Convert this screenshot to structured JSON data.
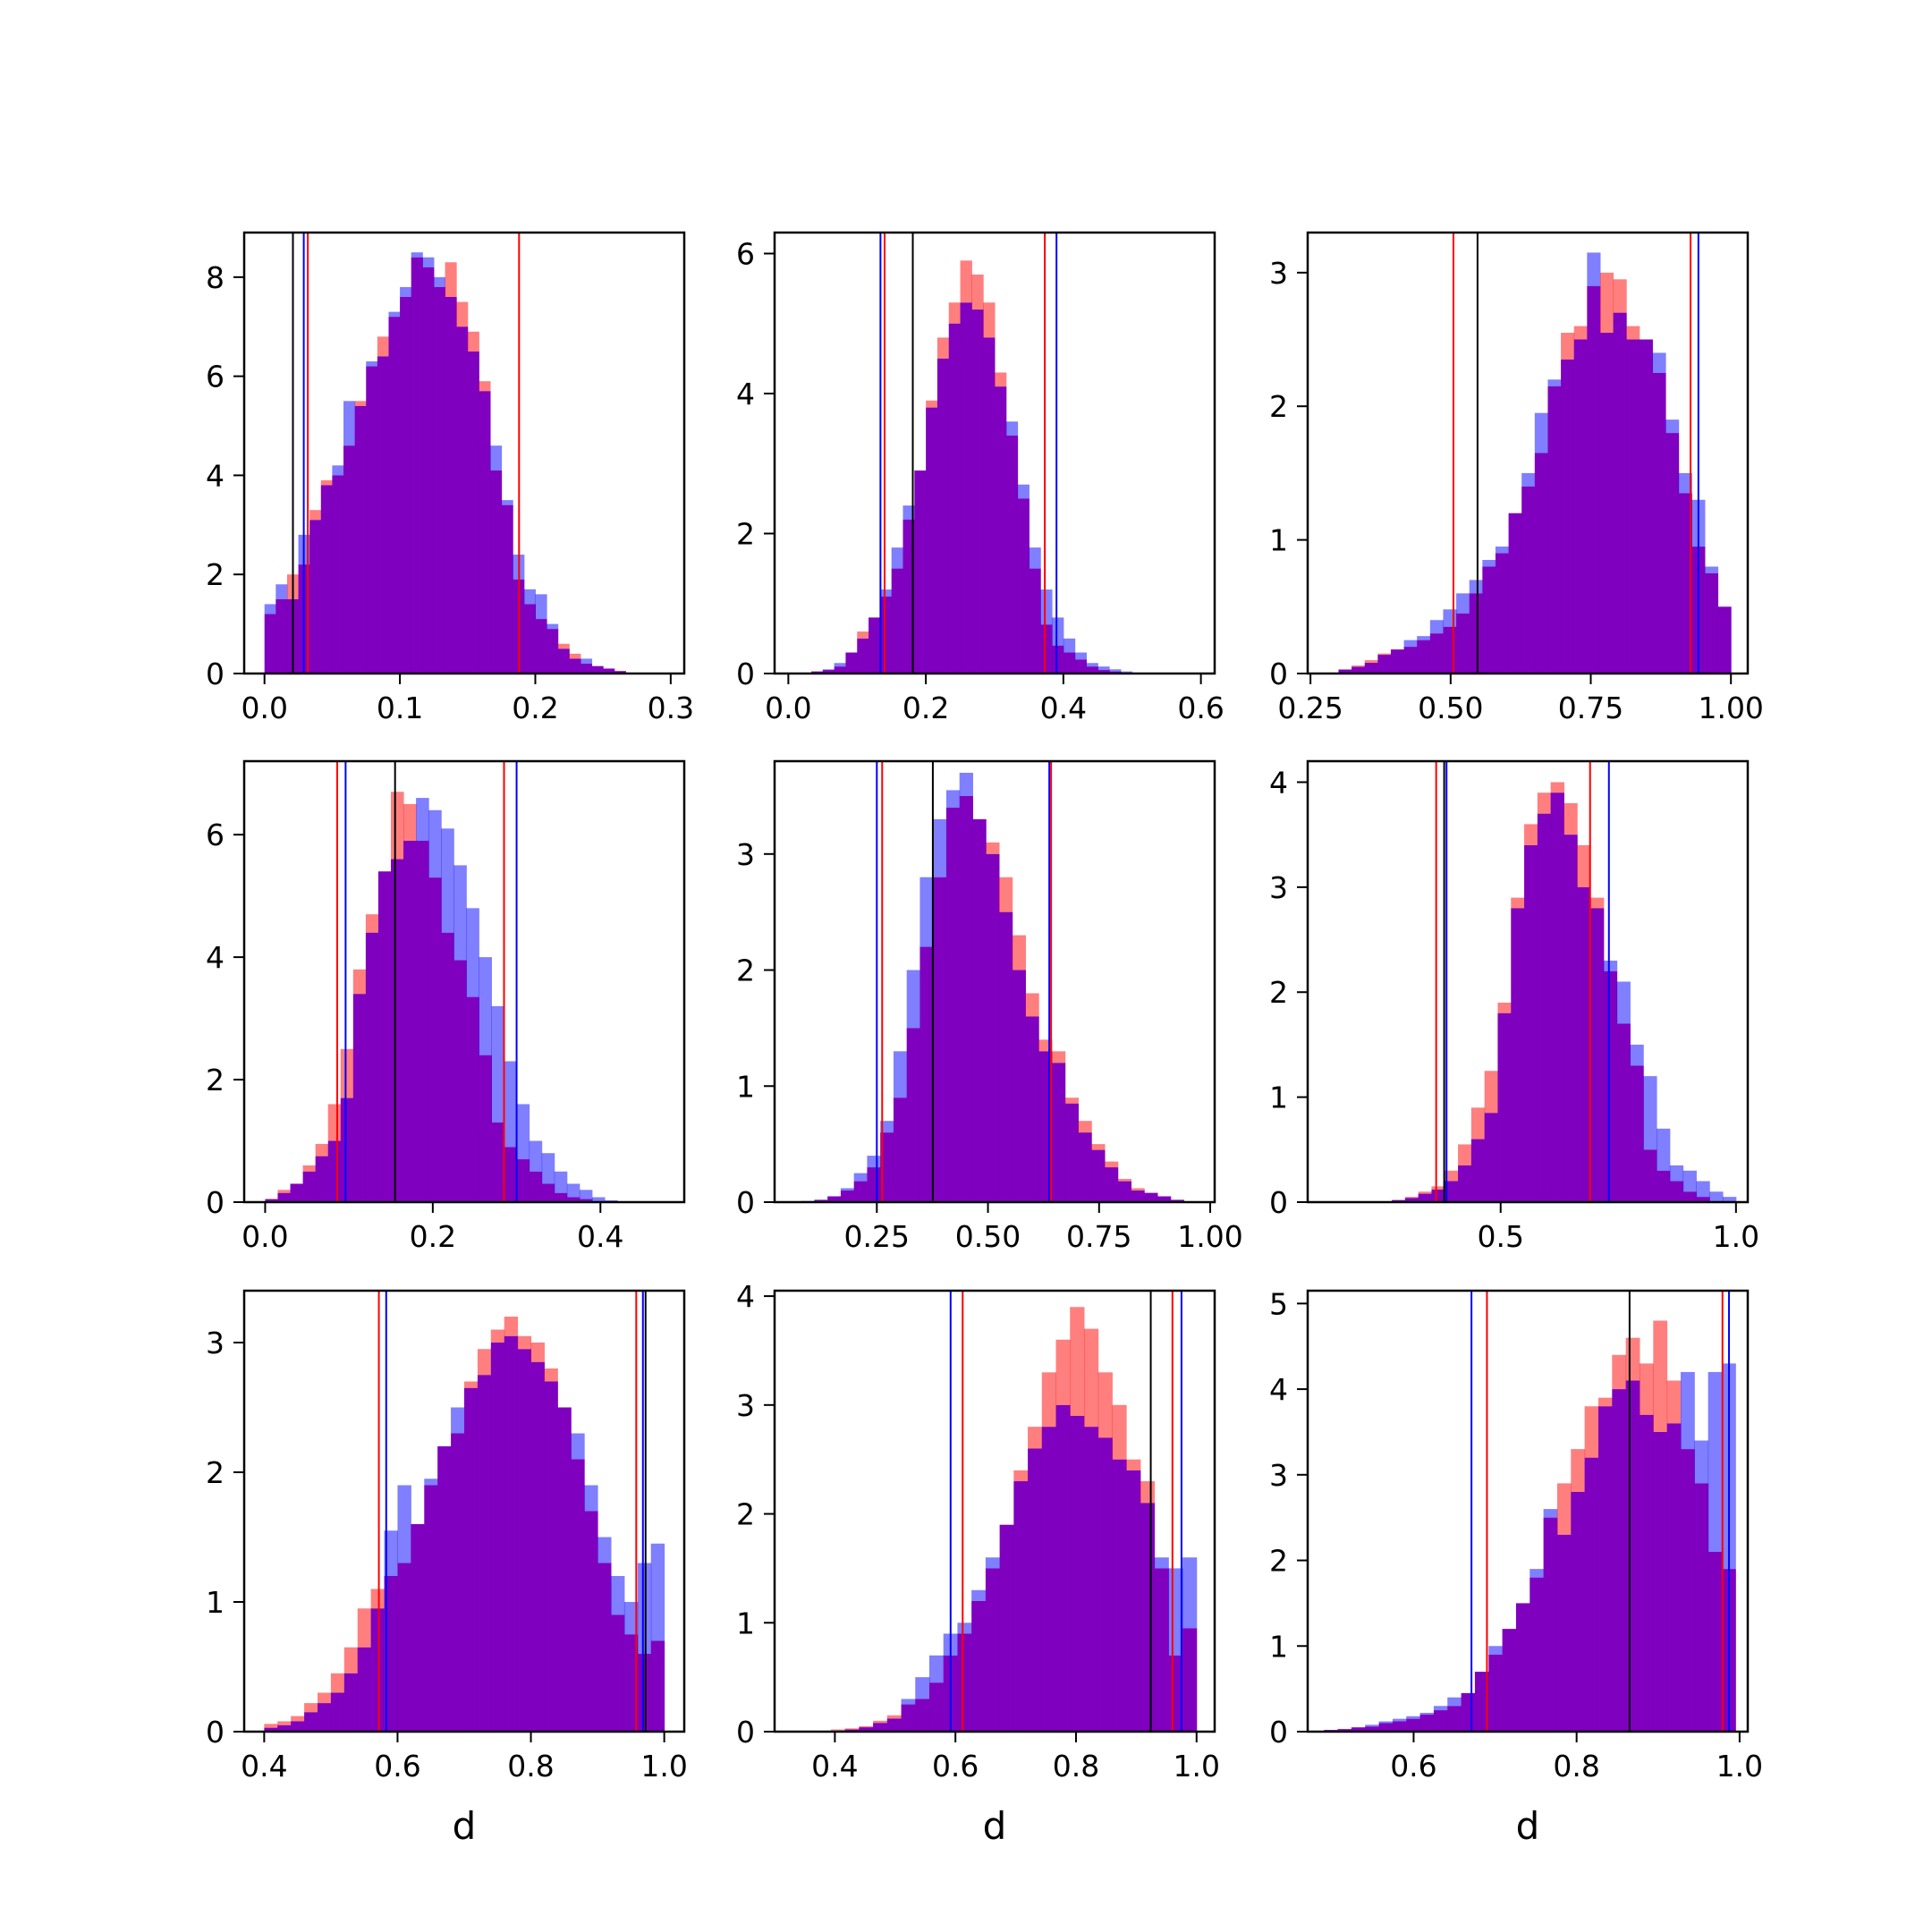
{
  "colors": {
    "red_series": "#ff0000",
    "blue_series": "#0000ff",
    "overlap": "#7f00bf",
    "reference_line": "#000000",
    "background": "#ffffff"
  },
  "chart_data": [
    {
      "type": "histogram",
      "xlabel": "",
      "xlim": [
        -0.015,
        0.31
      ],
      "ylim": [
        0,
        8.9
      ],
      "xticks": [
        0.0,
        0.1,
        0.2,
        0.3
      ],
      "xtick_labels": [
        "0.0",
        "0.1",
        "0.2",
        "0.3"
      ],
      "yticks": [
        0,
        2,
        4,
        6,
        8
      ],
      "ytick_labels": [
        "0",
        "2",
        "4",
        "6",
        "8"
      ],
      "bin_range": [
        0.0,
        0.3
      ],
      "series": [
        {
          "color": "red",
          "values": [
            1.2,
            1.5,
            2.0,
            2.2,
            3.3,
            3.9,
            4.0,
            4.6,
            5.5,
            6.2,
            6.8,
            7.2,
            7.6,
            8.4,
            8.2,
            7.8,
            8.3,
            7.5,
            6.9,
            5.9,
            4.1,
            3.4,
            1.9,
            1.4,
            1.1,
            0.9,
            0.6,
            0.4,
            0.2,
            0.15,
            0.1,
            0.05,
            0,
            0,
            0,
            0
          ]
        },
        {
          "color": "blue",
          "values": [
            1.4,
            1.8,
            1.5,
            2.8,
            3.1,
            3.8,
            4.2,
            5.5,
            5.4,
            6.3,
            6.4,
            7.3,
            7.8,
            8.5,
            8.4,
            8.0,
            7.6,
            7.0,
            6.5,
            5.7,
            4.6,
            3.5,
            2.4,
            1.7,
            1.6,
            1.0,
            0.5,
            0.3,
            0.3,
            0.15,
            0.1,
            0.05,
            0,
            0,
            0,
            0
          ]
        }
      ],
      "vlines": [
        {
          "color": "black",
          "x": 0.021
        },
        {
          "color": "blue",
          "x": 0.029
        },
        {
          "color": "red",
          "x": 0.032
        },
        {
          "color": "red",
          "x": 0.188
        }
      ]
    },
    {
      "type": "histogram",
      "xlabel": "",
      "xlim": [
        -0.02,
        0.62
      ],
      "ylim": [
        0,
        6.3
      ],
      "xticks": [
        0.0,
        0.2,
        0.4,
        0.6
      ],
      "xtick_labels": [
        "0.0",
        "0.2",
        "0.4",
        "0.6"
      ],
      "yticks": [
        0,
        2,
        4,
        6
      ],
      "ytick_labels": [
        "0",
        "2",
        "4",
        "6"
      ],
      "bin_range": [
        0.0,
        0.6
      ],
      "series": [
        {
          "color": "red",
          "values": [
            0,
            0,
            0.03,
            0.05,
            0.1,
            0.3,
            0.6,
            0.8,
            1.1,
            1.5,
            2.2,
            2.9,
            3.9,
            4.8,
            5.3,
            5.9,
            5.7,
            5.3,
            4.3,
            3.4,
            2.5,
            1.5,
            0.7,
            0.4,
            0.3,
            0.2,
            0.1,
            0.05,
            0.03,
            0.01,
            0,
            0,
            0,
            0,
            0,
            0
          ]
        },
        {
          "color": "blue",
          "values": [
            0,
            0,
            0.03,
            0.06,
            0.15,
            0.3,
            0.5,
            0.8,
            1.2,
            1.8,
            2.4,
            2.9,
            3.8,
            4.5,
            5.0,
            5.3,
            5.2,
            4.8,
            4.1,
            3.6,
            2.7,
            1.8,
            1.2,
            0.8,
            0.5,
            0.3,
            0.15,
            0.1,
            0.06,
            0.03,
            0.01,
            0,
            0,
            0,
            0,
            0
          ]
        }
      ],
      "vlines": [
        {
          "color": "blue",
          "x": 0.134
        },
        {
          "color": "red",
          "x": 0.14
        },
        {
          "color": "black",
          "x": 0.181
        },
        {
          "color": "red",
          "x": 0.373
        },
        {
          "color": "blue",
          "x": 0.39
        }
      ]
    },
    {
      "type": "histogram",
      "xlabel": "",
      "xlim": [
        0.245,
        1.03
      ],
      "ylim": [
        0,
        3.3
      ],
      "xticks": [
        0.25,
        0.5,
        0.75,
        1.0
      ],
      "xtick_labels": [
        "0.25",
        "0.50",
        "0.75",
        "1.00"
      ],
      "yticks": [
        0,
        1,
        2,
        3
      ],
      "ytick_labels": [
        "0",
        "1",
        "2",
        "3"
      ],
      "bin_range": [
        0.3,
        1.0
      ],
      "series": [
        {
          "color": "red",
          "values": [
            0.03,
            0.06,
            0.1,
            0.15,
            0.18,
            0.2,
            0.25,
            0.3,
            0.35,
            0.45,
            0.6,
            0.8,
            0.9,
            1.2,
            1.4,
            1.65,
            2.15,
            2.55,
            2.6,
            2.9,
            3.0,
            2.95,
            2.6,
            2.5,
            2.25,
            1.8,
            1.35,
            0.95,
            0.75,
            0.5
          ]
        },
        {
          "color": "blue",
          "values": [
            0.03,
            0.05,
            0.08,
            0.14,
            0.18,
            0.25,
            0.28,
            0.4,
            0.48,
            0.6,
            0.7,
            0.85,
            0.95,
            1.2,
            1.5,
            1.95,
            2.2,
            2.35,
            2.5,
            3.15,
            2.55,
            2.7,
            2.5,
            2.5,
            2.4,
            1.9,
            1.5,
            1.3,
            0.8,
            0.5
          ]
        }
      ],
      "vlines": [
        {
          "color": "red",
          "x": 0.505
        },
        {
          "color": "black",
          "x": 0.548
        },
        {
          "color": "red",
          "x": 0.928
        },
        {
          "color": "blue",
          "x": 0.942
        }
      ]
    },
    {
      "type": "histogram",
      "xlabel": "",
      "xlim": [
        -0.025,
        0.5
      ],
      "ylim": [
        0,
        7.2
      ],
      "xticks": [
        0.0,
        0.2,
        0.4
      ],
      "xtick_labels": [
        "0.0",
        "0.2",
        "0.4"
      ],
      "yticks": [
        0,
        2,
        4,
        6
      ],
      "ytick_labels": [
        "0",
        "2",
        "4",
        "6"
      ],
      "bin_range": [
        0.0,
        0.48
      ],
      "series": [
        {
          "color": "red",
          "values": [
            0.05,
            0.2,
            0.3,
            0.6,
            0.95,
            1.6,
            2.5,
            3.8,
            4.7,
            5.4,
            6.7,
            6.5,
            5.9,
            5.3,
            4.4,
            3.95,
            3.35,
            2.4,
            1.3,
            0.9,
            0.7,
            0.5,
            0.3,
            0.15,
            0.08,
            0.05,
            0,
            0,
            0,
            0,
            0,
            0
          ]
        },
        {
          "color": "blue",
          "values": [
            0.05,
            0.15,
            0.3,
            0.5,
            0.75,
            1.0,
            1.7,
            3.4,
            4.4,
            5.4,
            5.6,
            5.9,
            6.6,
            6.4,
            6.1,
            5.5,
            4.8,
            4.0,
            3.2,
            2.3,
            1.6,
            1.0,
            0.8,
            0.5,
            0.3,
            0.2,
            0.08,
            0.03,
            0,
            0,
            0,
            0
          ]
        }
      ],
      "vlines": [
        {
          "color": "red",
          "x": 0.086
        },
        {
          "color": "blue",
          "x": 0.096
        },
        {
          "color": "black",
          "x": 0.155
        },
        {
          "color": "red",
          "x": 0.285
        },
        {
          "color": "blue",
          "x": 0.3
        }
      ]
    },
    {
      "type": "histogram",
      "xlabel": "",
      "xlim": [
        0.02,
        1.01
      ],
      "ylim": [
        0,
        3.8
      ],
      "xticks": [
        0.25,
        0.5,
        0.75,
        1.0
      ],
      "xtick_labels": [
        "0.25",
        "0.50",
        "0.75",
        "1.00"
      ],
      "yticks": [
        0,
        1,
        2,
        3
      ],
      "ytick_labels": [
        "0",
        "1",
        "2",
        "3"
      ],
      "bin_range": [
        0.05,
        1.0
      ],
      "series": [
        {
          "color": "red",
          "values": [
            0,
            0,
            0.02,
            0.05,
            0.1,
            0.18,
            0.3,
            0.6,
            0.9,
            1.5,
            2.2,
            2.8,
            3.4,
            3.5,
            3.3,
            3.1,
            2.8,
            2.3,
            1.8,
            1.4,
            1.3,
            0.9,
            0.7,
            0.5,
            0.35,
            0.2,
            0.12,
            0.08,
            0.05,
            0.02,
            0,
            0
          ]
        },
        {
          "color": "blue",
          "values": [
            0,
            0.01,
            0.02,
            0.05,
            0.12,
            0.25,
            0.4,
            0.7,
            1.3,
            2.0,
            2.8,
            3.3,
            3.55,
            3.7,
            3.3,
            3.0,
            2.5,
            2.0,
            1.6,
            1.3,
            1.2,
            0.85,
            0.6,
            0.45,
            0.3,
            0.18,
            0.1,
            0.08,
            0.05,
            0.02,
            0,
            0
          ]
        }
      ],
      "vlines": [
        {
          "color": "blue",
          "x": 0.25
        },
        {
          "color": "red",
          "x": 0.262
        },
        {
          "color": "black",
          "x": 0.376
        },
        {
          "color": "blue",
          "x": 0.638
        },
        {
          "color": "red",
          "x": 0.642
        }
      ]
    },
    {
      "type": "histogram",
      "xlabel": "",
      "xlim": [
        0.09,
        1.025
      ],
      "ylim": [
        0,
        4.2
      ],
      "xticks": [
        0.5,
        1.0
      ],
      "xtick_labels": [
        "0.5",
        "1.0"
      ],
      "yticks": [
        0,
        1,
        2,
        3,
        4
      ],
      "ytick_labels": [
        "0",
        "1",
        "2",
        "3",
        "4"
      ],
      "bin_range": [
        0.1,
        1.0
      ],
      "series": [
        {
          "color": "red",
          "values": [
            0,
            0,
            0,
            0,
            0,
            0,
            0.02,
            0.05,
            0.1,
            0.15,
            0.3,
            0.55,
            0.9,
            1.25,
            1.9,
            2.9,
            3.6,
            3.9,
            4.0,
            3.8,
            3.4,
            2.9,
            2.2,
            1.7,
            1.3,
            0.5,
            0.3,
            0.2,
            0.1,
            0.05,
            0,
            0
          ]
        },
        {
          "color": "blue",
          "values": [
            0,
            0,
            0,
            0,
            0,
            0,
            0.02,
            0.04,
            0.08,
            0.12,
            0.2,
            0.35,
            0.6,
            0.85,
            1.8,
            2.8,
            3.4,
            3.7,
            3.9,
            3.5,
            3.0,
            2.8,
            2.3,
            2.1,
            1.5,
            1.2,
            0.7,
            0.35,
            0.3,
            0.2,
            0.1,
            0.05
          ]
        }
      ],
      "vlines": [
        {
          "color": "red",
          "x": 0.363
        },
        {
          "color": "black",
          "x": 0.38
        },
        {
          "color": "blue",
          "x": 0.385
        },
        {
          "color": "red",
          "x": 0.69
        },
        {
          "color": "blue",
          "x": 0.73
        }
      ]
    },
    {
      "type": "histogram",
      "xlabel": "d",
      "xlim": [
        0.37,
        1.03
      ],
      "ylim": [
        0,
        3.4
      ],
      "xticks": [
        0.4,
        0.6,
        0.8,
        1.0
      ],
      "xtick_labels": [
        "0.4",
        "0.6",
        "0.8",
        "1.0"
      ],
      "yticks": [
        0,
        1,
        2,
        3
      ],
      "ytick_labels": [
        "0",
        "1",
        "2",
        "3"
      ],
      "bin_range": [
        0.4,
        1.0
      ],
      "series": [
        {
          "color": "red",
          "values": [
            0.06,
            0.08,
            0.12,
            0.22,
            0.3,
            0.45,
            0.65,
            0.95,
            1.1,
            1.2,
            1.3,
            1.6,
            1.9,
            2.2,
            2.3,
            2.7,
            2.95,
            3.1,
            3.2,
            3.05,
            3.0,
            2.8,
            2.5,
            2.1,
            1.7,
            1.3,
            0.9,
            0.75,
            0.6,
            0.7
          ]
        },
        {
          "color": "blue",
          "values": [
            0.03,
            0.05,
            0.08,
            0.15,
            0.22,
            0.3,
            0.45,
            0.65,
            0.95,
            1.55,
            1.9,
            1.6,
            1.95,
            2.2,
            2.5,
            2.65,
            2.75,
            3.0,
            3.05,
            2.95,
            2.85,
            2.7,
            2.5,
            2.3,
            1.9,
            1.5,
            1.2,
            1.0,
            1.3,
            1.45
          ]
        }
      ],
      "vlines": [
        {
          "color": "red",
          "x": 0.572
        },
        {
          "color": "blue",
          "x": 0.583
        },
        {
          "color": "red",
          "x": 0.958
        },
        {
          "color": "blue",
          "x": 0.968
        },
        {
          "color": "black",
          "x": 0.972
        }
      ]
    },
    {
      "type": "histogram",
      "xlabel": "d",
      "xlim": [
        0.3,
        1.03
      ],
      "ylim": [
        0,
        4.05
      ],
      "xticks": [
        0.4,
        0.6,
        0.8,
        1.0
      ],
      "xtick_labels": [
        "0.4",
        "0.6",
        "0.8",
        "1.0"
      ],
      "yticks": [
        0,
        1,
        2,
        3,
        4
      ],
      "ytick_labels": [
        "0",
        "1",
        "2",
        "3",
        "4"
      ],
      "bin_range": [
        0.3,
        1.0
      ],
      "series": [
        {
          "color": "red",
          "values": [
            0,
            0,
            0,
            0,
            0.02,
            0.03,
            0.05,
            0.1,
            0.15,
            0.25,
            0.3,
            0.45,
            0.7,
            0.9,
            1.2,
            1.5,
            1.9,
            2.4,
            2.8,
            3.3,
            3.6,
            3.9,
            3.7,
            3.3,
            3.0,
            2.5,
            2.3,
            1.5,
            0.7,
            0.95
          ]
        },
        {
          "color": "blue",
          "values": [
            0,
            0,
            0,
            0,
            0,
            0.02,
            0.04,
            0.08,
            0.12,
            0.3,
            0.5,
            0.7,
            0.9,
            1.0,
            1.3,
            1.6,
            1.9,
            2.3,
            2.6,
            2.8,
            3.0,
            2.9,
            2.8,
            2.7,
            2.5,
            2.4,
            2.1,
            1.6,
            1.5,
            1.6
          ]
        }
      ],
      "vlines": [
        {
          "color": "blue",
          "x": 0.592
        },
        {
          "color": "red",
          "x": 0.612
        },
        {
          "color": "black",
          "x": 0.924
        },
        {
          "color": "red",
          "x": 0.96
        },
        {
          "color": "blue",
          "x": 0.975
        }
      ]
    },
    {
      "type": "histogram",
      "xlabel": "d",
      "xlim": [
        0.47,
        1.01
      ],
      "ylim": [
        0,
        5.15
      ],
      "xticks": [
        0.6,
        0.8,
        1.0
      ],
      "xtick_labels": [
        "0.6",
        "0.8",
        "1.0"
      ],
      "yticks": [
        0,
        1,
        2,
        3,
        4,
        5
      ],
      "ytick_labels": [
        "0",
        "1",
        "2",
        "3",
        "4",
        "5"
      ],
      "bin_range": [
        0.49,
        0.995
      ],
      "series": [
        {
          "color": "red",
          "values": [
            0.02,
            0.03,
            0.05,
            0.06,
            0.1,
            0.12,
            0.15,
            0.2,
            0.25,
            0.3,
            0.45,
            0.7,
            0.9,
            1.2,
            1.5,
            1.8,
            2.5,
            2.9,
            3.3,
            3.8,
            3.9,
            4.4,
            4.6,
            4.3,
            4.8,
            4.1,
            3.3,
            2.9,
            2.1,
            1.9
          ]
        },
        {
          "color": "blue",
          "values": [
            0.02,
            0.03,
            0.05,
            0.08,
            0.12,
            0.15,
            0.18,
            0.22,
            0.3,
            0.4,
            0.45,
            0.7,
            1.0,
            1.2,
            1.5,
            1.9,
            2.6,
            2.3,
            2.8,
            3.2,
            3.8,
            4.0,
            4.1,
            3.7,
            3.5,
            3.6,
            4.2,
            3.4,
            4.2,
            4.3
          ]
        }
      ],
      "vlines": [
        {
          "color": "blue",
          "x": 0.671
        },
        {
          "color": "red",
          "x": 0.69
        },
        {
          "color": "black",
          "x": 0.865
        },
        {
          "color": "red",
          "x": 0.979
        },
        {
          "color": "blue",
          "x": 0.987
        }
      ]
    }
  ]
}
